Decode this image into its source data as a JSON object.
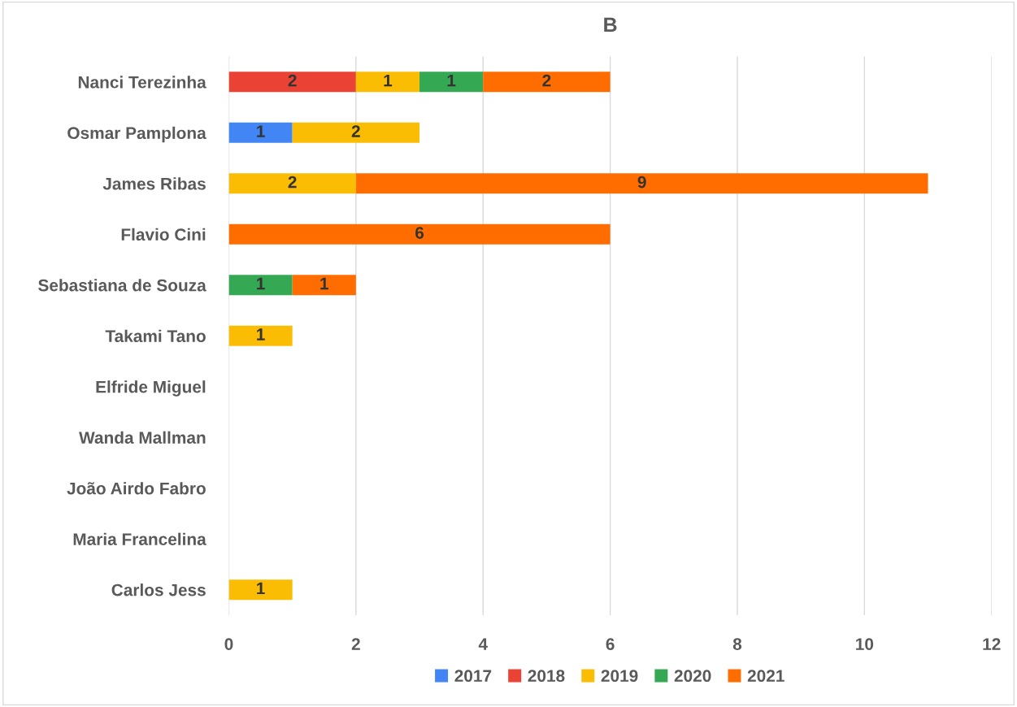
{
  "chart_data": {
    "type": "bar",
    "title": "B",
    "orientation": "horizontal",
    "stacked": true,
    "data_labels": true,
    "categories": [
      "Nanci Terezinha",
      "Osmar Pamplona",
      "James Ribas",
      "Flavio Cini",
      "Sebastiana de Souza",
      "Takami Tano",
      "Elfride Miguel",
      "Wanda Mallman",
      "João Airdo Fabro",
      "Maria Francelina",
      "Carlos Jess"
    ],
    "series": [
      {
        "name": "2017",
        "color": "#4285f4",
        "values": [
          null,
          1,
          null,
          null,
          null,
          null,
          null,
          null,
          null,
          null,
          null
        ]
      },
      {
        "name": "2018",
        "color": "#ea4335",
        "values": [
          2,
          null,
          null,
          null,
          null,
          null,
          null,
          null,
          null,
          null,
          null
        ]
      },
      {
        "name": "2019",
        "color": "#fbbc04",
        "values": [
          1,
          2,
          2,
          null,
          null,
          1,
          null,
          null,
          null,
          null,
          1
        ]
      },
      {
        "name": "2020",
        "color": "#34a853",
        "values": [
          1,
          null,
          null,
          null,
          1,
          null,
          null,
          null,
          null,
          null,
          null
        ]
      },
      {
        "name": "2021",
        "color": "#ff6d01",
        "values": [
          2,
          null,
          9,
          6,
          1,
          null,
          null,
          null,
          null,
          null,
          null
        ]
      }
    ],
    "xlim": [
      0,
      12
    ],
    "xticks": [
      0,
      2,
      4,
      6,
      8,
      10,
      12
    ],
    "grid": "x",
    "legend": "bottom"
  }
}
